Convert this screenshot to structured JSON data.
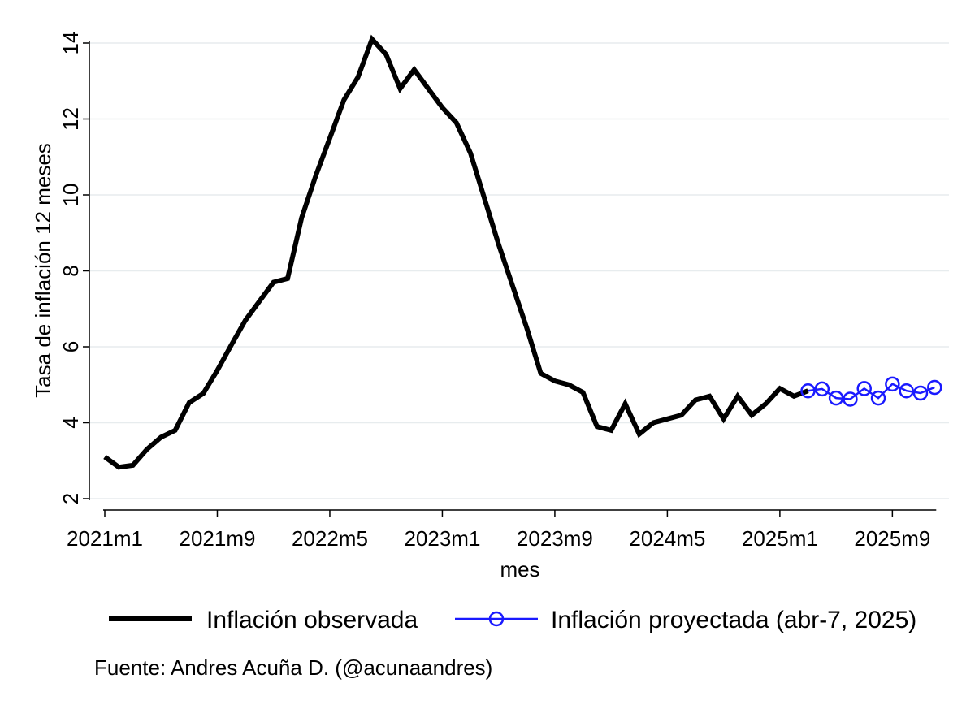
{
  "chart_data": {
    "type": "line",
    "xlabel": "mes",
    "ylabel": "Tasa de inflación 12 meses",
    "ylim": [
      2,
      14
    ],
    "yticks": [
      2,
      4,
      6,
      8,
      10,
      12,
      14
    ],
    "xlim": [
      "2021m1",
      "2025m12"
    ],
    "xticks": [
      "2021m1",
      "2021m9",
      "2022m5",
      "2023m1",
      "2023m9",
      "2024m5",
      "2025m1",
      "2025m9"
    ],
    "grid": "horizontal",
    "legend_position": "bottom",
    "series": [
      {
        "name": "Inflación observada",
        "color": "#000000",
        "marker": "none",
        "points": [
          [
            "2021m1",
            3.1
          ],
          [
            "2021m2",
            2.83
          ],
          [
            "2021m3",
            2.88
          ],
          [
            "2021m4",
            3.3
          ],
          [
            "2021m5",
            3.62
          ],
          [
            "2021m6",
            3.8
          ],
          [
            "2021m7",
            4.53
          ],
          [
            "2021m8",
            4.77
          ],
          [
            "2021m9",
            5.38
          ],
          [
            "2021m10",
            6.05
          ],
          [
            "2021m11",
            6.7
          ],
          [
            "2021m12",
            7.2
          ],
          [
            "2022m1",
            7.7
          ],
          [
            "2022m2",
            7.8
          ],
          [
            "2022m3",
            9.4
          ],
          [
            "2022m4",
            10.5
          ],
          [
            "2022m5",
            11.5
          ],
          [
            "2022m6",
            12.5
          ],
          [
            "2022m7",
            13.1
          ],
          [
            "2022m8",
            14.1
          ],
          [
            "2022m9",
            13.7
          ],
          [
            "2022m10",
            12.8
          ],
          [
            "2022m11",
            13.3
          ],
          [
            "2022m12",
            12.8
          ],
          [
            "2023m1",
            12.3
          ],
          [
            "2023m2",
            11.9
          ],
          [
            "2023m3",
            11.1
          ],
          [
            "2023m4",
            9.9
          ],
          [
            "2023m5",
            8.7
          ],
          [
            "2023m6",
            7.6
          ],
          [
            "2023m7",
            6.5
          ],
          [
            "2023m8",
            5.3
          ],
          [
            "2023m9",
            5.1
          ],
          [
            "2023m10",
            5.0
          ],
          [
            "2023m11",
            4.8
          ],
          [
            "2023m12",
            3.9
          ],
          [
            "2024m1",
            3.8
          ],
          [
            "2024m2",
            4.5
          ],
          [
            "2024m3",
            3.7
          ],
          [
            "2024m4",
            4.0
          ],
          [
            "2024m5",
            4.1
          ],
          [
            "2024m6",
            4.2
          ],
          [
            "2024m7",
            4.6
          ],
          [
            "2024m8",
            4.7
          ],
          [
            "2024m9",
            4.1
          ],
          [
            "2024m10",
            4.7
          ],
          [
            "2024m11",
            4.2
          ],
          [
            "2024m12",
            4.5
          ],
          [
            "2025m1",
            4.9
          ],
          [
            "2025m2",
            4.7
          ],
          [
            "2025m3",
            4.84
          ]
        ]
      },
      {
        "name": "Inflación proyectada (abr-7, 2025)",
        "color": "#1a1aff",
        "marker": "hollow-circle",
        "points": [
          [
            "2025m3",
            4.84
          ],
          [
            "2025m4",
            4.89
          ],
          [
            "2025m5",
            4.65
          ],
          [
            "2025m6",
            4.62
          ],
          [
            "2025m7",
            4.9
          ],
          [
            "2025m8",
            4.65
          ],
          [
            "2025m9",
            5.02
          ],
          [
            "2025m10",
            4.84
          ],
          [
            "2025m11",
            4.78
          ],
          [
            "2025m12",
            4.93
          ]
        ]
      }
    ],
    "source_note": "Fuente: Andres Acuña D. (@acunaandres)"
  }
}
